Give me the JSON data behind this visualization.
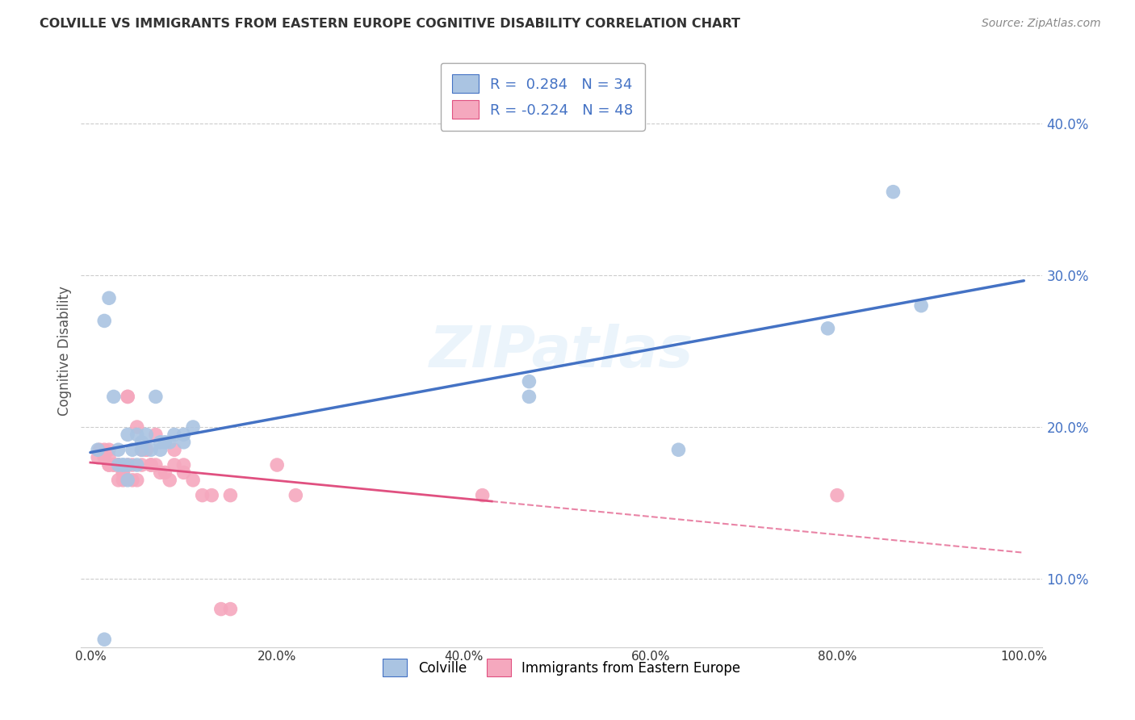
{
  "title": "COLVILLE VS IMMIGRANTS FROM EASTERN EUROPE COGNITIVE DISABILITY CORRELATION CHART",
  "source": "Source: ZipAtlas.com",
  "ylabel": "Cognitive Disability",
  "y_ticks": [
    0.1,
    0.2,
    0.3,
    0.4
  ],
  "y_tick_labels": [
    "10.0%",
    "20.0%",
    "30.0%",
    "40.0%"
  ],
  "x_ticks": [
    0.0,
    0.2,
    0.4,
    0.6,
    0.8,
    1.0
  ],
  "x_tick_labels": [
    "0.0%",
    "20.0%",
    "40.0%",
    "60.0%",
    "80.0%",
    "100.0%"
  ],
  "xlim": [
    -0.01,
    1.02
  ],
  "ylim": [
    0.055,
    0.445
  ],
  "colville_R": 0.284,
  "colville_N": 34,
  "immigrants_R": -0.224,
  "immigrants_N": 48,
  "colville_color": "#aac4e2",
  "immigrants_color": "#f5a8be",
  "colville_line_color": "#4472c4",
  "immigrants_line_color": "#e05080",
  "colville_x": [
    0.008,
    0.015,
    0.02,
    0.025,
    0.03,
    0.03,
    0.035,
    0.035,
    0.04,
    0.04,
    0.04,
    0.045,
    0.05,
    0.05,
    0.055,
    0.055,
    0.06,
    0.065,
    0.07,
    0.075,
    0.075,
    0.08,
    0.085,
    0.09,
    0.1,
    0.1,
    0.11,
    0.47,
    0.47,
    0.63,
    0.79,
    0.86,
    0.89,
    0.015
  ],
  "colville_y": [
    0.185,
    0.27,
    0.285,
    0.22,
    0.185,
    0.175,
    0.175,
    0.175,
    0.195,
    0.175,
    0.165,
    0.185,
    0.195,
    0.175,
    0.19,
    0.185,
    0.195,
    0.185,
    0.22,
    0.185,
    0.19,
    0.19,
    0.19,
    0.195,
    0.195,
    0.19,
    0.2,
    0.23,
    0.22,
    0.185,
    0.265,
    0.355,
    0.28,
    0.06
  ],
  "immigrants_x": [
    0.008,
    0.01,
    0.015,
    0.015,
    0.02,
    0.02,
    0.02,
    0.02,
    0.025,
    0.025,
    0.03,
    0.03,
    0.03,
    0.035,
    0.035,
    0.035,
    0.04,
    0.04,
    0.04,
    0.045,
    0.045,
    0.05,
    0.05,
    0.055,
    0.055,
    0.06,
    0.06,
    0.065,
    0.065,
    0.07,
    0.07,
    0.075,
    0.08,
    0.085,
    0.09,
    0.09,
    0.1,
    0.1,
    0.11,
    0.12,
    0.13,
    0.14,
    0.15,
    0.15,
    0.2,
    0.22,
    0.42,
    0.8
  ],
  "immigrants_y": [
    0.18,
    0.185,
    0.185,
    0.18,
    0.185,
    0.18,
    0.175,
    0.175,
    0.175,
    0.175,
    0.175,
    0.175,
    0.165,
    0.17,
    0.17,
    0.165,
    0.175,
    0.22,
    0.22,
    0.175,
    0.165,
    0.165,
    0.2,
    0.185,
    0.175,
    0.185,
    0.185,
    0.175,
    0.175,
    0.195,
    0.175,
    0.17,
    0.17,
    0.165,
    0.185,
    0.175,
    0.175,
    0.17,
    0.165,
    0.155,
    0.155,
    0.08,
    0.08,
    0.155,
    0.175,
    0.155,
    0.155,
    0.155
  ],
  "background_color": "#ffffff",
  "grid_color": "#cccccc"
}
